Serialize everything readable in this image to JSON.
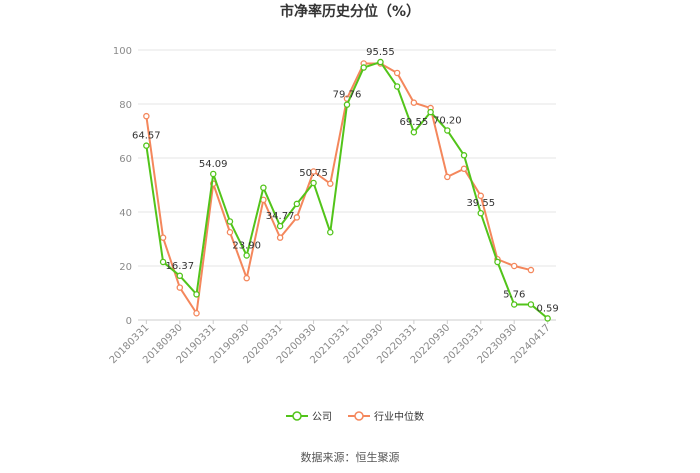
{
  "chart_data": {
    "type": "line",
    "title": "市净率历史分位（%）",
    "source": "数据来源：恒生聚源",
    "ylim": [
      0,
      100
    ],
    "yticks": [
      "0",
      "20",
      "40",
      "60",
      "80",
      "100"
    ],
    "xtick_labels": [
      "20180331",
      "20180930",
      "20190331",
      "20190930",
      "20200331",
      "20200930",
      "20210331",
      "20210930",
      "20220331",
      "20220930",
      "20230331",
      "20230930",
      "20240417"
    ],
    "x_count": 25,
    "legend": {
      "position": "bottom"
    },
    "series": [
      {
        "name": "公司",
        "color": "#52c41a",
        "values": [
          64.57,
          21.5,
          16.37,
          9.5,
          54.09,
          36.5,
          23.9,
          49.0,
          34.77,
          43.0,
          50.75,
          32.5,
          79.76,
          93.5,
          95.55,
          86.5,
          69.55,
          77.0,
          70.2,
          61.0,
          39.55,
          21.5,
          5.76,
          5.76,
          0.59
        ]
      },
      {
        "name": "行业中位数",
        "color": "#f4875c",
        "values": [
          75.5,
          30.5,
          12.0,
          2.5,
          50.5,
          32.5,
          15.5,
          44.5,
          30.5,
          38.0,
          55.0,
          50.5,
          82.0,
          95.0,
          95.0,
          91.5,
          80.5,
          78.5,
          53.0,
          56.0,
          46.0,
          22.5,
          20.0,
          18.5,
          null
        ]
      }
    ],
    "data_labels": [
      {
        "series": 0,
        "index": 0,
        "text": "64.57"
      },
      {
        "series": 0,
        "index": 2,
        "text": "16.37"
      },
      {
        "series": 0,
        "index": 4,
        "text": "54.09"
      },
      {
        "series": 0,
        "index": 6,
        "text": "23.90"
      },
      {
        "series": 0,
        "index": 8,
        "text": "34.77"
      },
      {
        "series": 0,
        "index": 10,
        "text": "50.75"
      },
      {
        "series": 0,
        "index": 12,
        "text": "79.76"
      },
      {
        "series": 0,
        "index": 14,
        "text": "95.55"
      },
      {
        "series": 0,
        "index": 16,
        "text": "69.55"
      },
      {
        "series": 0,
        "index": 18,
        "text": "70.20"
      },
      {
        "series": 0,
        "index": 20,
        "text": "39.55"
      },
      {
        "series": 0,
        "index": 22,
        "text": "5.76"
      },
      {
        "series": 0,
        "index": 24,
        "text": "0.59"
      }
    ]
  }
}
